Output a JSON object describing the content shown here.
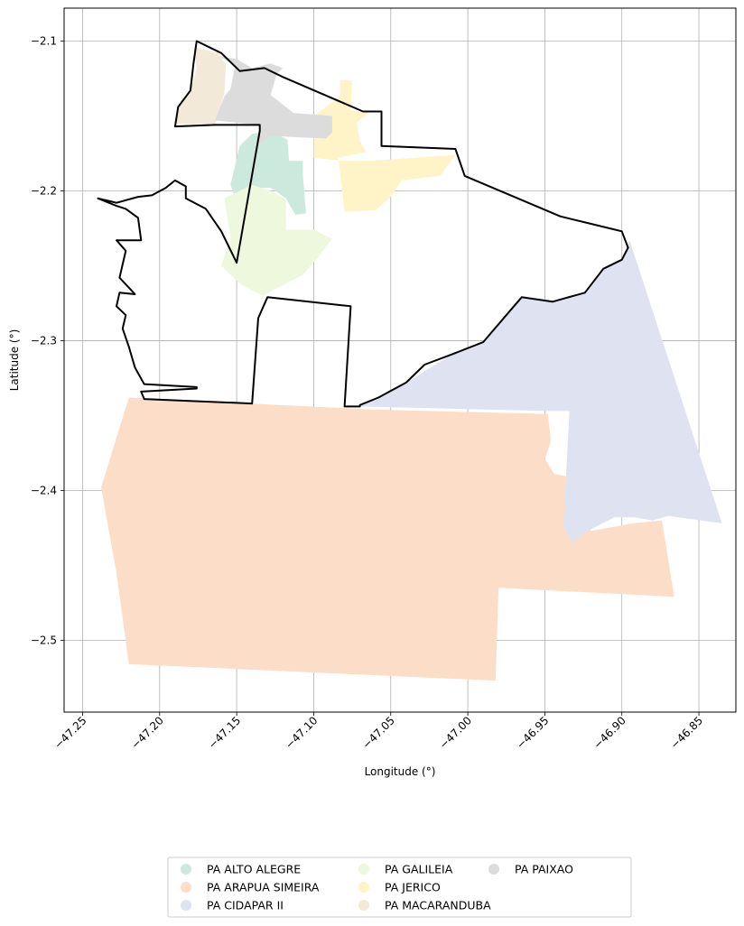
{
  "chart_data": {
    "type": "map",
    "title": "",
    "xlabel": "Longitude (°)",
    "ylabel": "Latitude (°)",
    "xlim": [
      -47.262,
      -46.826
    ],
    "ylim": [
      -2.548,
      -2.078
    ],
    "x_ticks": [
      -47.25,
      -47.2,
      -47.15,
      -47.1,
      -47.05,
      -47.0,
      -46.95,
      -46.9,
      -46.85
    ],
    "x_tick_labels": [
      "−47.25",
      "−47.20",
      "−47.15",
      "−47.10",
      "−47.05",
      "−47.00",
      "−46.95",
      "−46.90",
      "−46.85"
    ],
    "y_ticks": [
      -2.1,
      -2.2,
      -2.3,
      -2.4,
      -2.5
    ],
    "y_tick_labels": [
      "−2.1",
      "−2.2",
      "−2.3",
      "−2.4",
      "−2.5"
    ],
    "grid": true,
    "legend_position": "bottom-center",
    "legend_columns": 3,
    "boundary": {
      "color": "#000000",
      "coordinates": [
        [
          -47.176,
          -2.1
        ],
        [
          -47.16,
          -2.108
        ],
        [
          -47.148,
          -2.12
        ],
        [
          -47.132,
          -2.118
        ],
        [
          -47.12,
          -2.124
        ],
        [
          -47.068,
          -2.147
        ],
        [
          -47.056,
          -2.147
        ],
        [
          -47.056,
          -2.17
        ],
        [
          -47.008,
          -2.172
        ],
        [
          -47.002,
          -2.19
        ],
        [
          -46.94,
          -2.217
        ],
        [
          -46.92,
          -2.222
        ],
        [
          -46.9,
          -2.227
        ],
        [
          -46.896,
          -2.238
        ],
        [
          -46.9,
          -2.246
        ],
        [
          -46.912,
          -2.252
        ],
        [
          -46.924,
          -2.268
        ],
        [
          -46.945,
          -2.274
        ],
        [
          -46.965,
          -2.271
        ],
        [
          -46.975,
          -2.283
        ],
        [
          -46.99,
          -2.301
        ],
        [
          -47.01,
          -2.309
        ],
        [
          -47.028,
          -2.316
        ],
        [
          -47.04,
          -2.328
        ],
        [
          -47.058,
          -2.338
        ],
        [
          -47.07,
          -2.343
        ],
        [
          -47.07,
          -2.344
        ],
        [
          -47.08,
          -2.344
        ],
        [
          -47.076,
          -2.277
        ],
        [
          -47.13,
          -2.271
        ],
        [
          -47.136,
          -2.285
        ],
        [
          -47.14,
          -2.342
        ],
        [
          -47.21,
          -2.339
        ],
        [
          -47.212,
          -2.334
        ],
        [
          -47.176,
          -2.332
        ],
        [
          -47.176,
          -2.331
        ],
        [
          -47.21,
          -2.329
        ],
        [
          -47.216,
          -2.318
        ],
        [
          -47.22,
          -2.304
        ],
        [
          -47.224,
          -2.292
        ],
        [
          -47.222,
          -2.283
        ],
        [
          -47.228,
          -2.277
        ],
        [
          -47.226,
          -2.268
        ],
        [
          -47.216,
          -2.269
        ],
        [
          -47.226,
          -2.258
        ],
        [
          -47.222,
          -2.24
        ],
        [
          -47.228,
          -2.233
        ],
        [
          -47.212,
          -2.233
        ],
        [
          -47.214,
          -2.218
        ],
        [
          -47.222,
          -2.212
        ],
        [
          -47.228,
          -2.21
        ],
        [
          -47.24,
          -2.205
        ],
        [
          -47.228,
          -2.208
        ],
        [
          -47.214,
          -2.204
        ],
        [
          -47.205,
          -2.203
        ],
        [
          -47.196,
          -2.198
        ],
        [
          -47.19,
          -2.193
        ],
        [
          -47.183,
          -2.197
        ],
        [
          -47.183,
          -2.205
        ],
        [
          -47.17,
          -2.212
        ],
        [
          -47.16,
          -2.227
        ],
        [
          -47.15,
          -2.248
        ],
        [
          -47.135,
          -2.16
        ],
        [
          -47.135,
          -2.156
        ],
        [
          -47.164,
          -2.156
        ],
        [
          -47.19,
          -2.157
        ],
        [
          -47.188,
          -2.144
        ],
        [
          -47.18,
          -2.133
        ],
        [
          -47.178,
          -2.115
        ],
        [
          -47.176,
          -2.1
        ]
      ]
    },
    "series": [
      {
        "name": "PA ALTO ALEGRE",
        "color": "#cce9dd",
        "polygons": [
          [
            [
              -47.148,
              -2.17
            ],
            [
              -47.14,
              -2.162
            ],
            [
              -47.127,
              -2.16
            ],
            [
              -47.117,
              -2.166
            ],
            [
              -47.116,
              -2.18
            ],
            [
              -47.107,
              -2.18
            ],
            [
              -47.107,
              -2.19
            ],
            [
              -47.105,
              -2.215
            ],
            [
              -47.112,
              -2.216
            ],
            [
              -47.118,
              -2.205
            ],
            [
              -47.128,
              -2.198
            ],
            [
              -47.14,
              -2.198
            ],
            [
              -47.15,
              -2.208
            ],
            [
              -47.154,
              -2.196
            ]
          ]
        ]
      },
      {
        "name": "PA ARAPUA SIMEIRA",
        "color": "#fcdec8",
        "polygons": [
          [
            [
              -47.22,
              -2.338
            ],
            [
              -47.062,
              -2.346
            ],
            [
              -46.948,
              -2.349
            ],
            [
              -46.946,
              -2.367
            ],
            [
              -46.95,
              -2.379
            ],
            [
              -46.944,
              -2.389
            ],
            [
              -46.928,
              -2.392
            ],
            [
              -46.92,
              -2.427
            ],
            [
              -46.893,
              -2.422
            ],
            [
              -46.874,
              -2.42
            ],
            [
              -46.866,
              -2.471
            ],
            [
              -46.98,
              -2.465
            ],
            [
              -46.982,
              -2.527
            ],
            [
              -47.22,
              -2.516
            ],
            [
              -47.228,
              -2.455
            ],
            [
              -47.238,
              -2.398
            ]
          ]
        ]
      },
      {
        "name": "PA CIDAPAR II",
        "color": "#dfe2f0",
        "polygons": [
          [
            [
              -46.895,
              -2.233
            ],
            [
              -46.835,
              -2.422
            ],
            [
              -46.87,
              -2.417
            ],
            [
              -46.88,
              -2.42
            ],
            [
              -46.892,
              -2.418
            ],
            [
              -46.905,
              -2.418
            ],
            [
              -46.924,
              -2.428
            ],
            [
              -46.932,
              -2.435
            ],
            [
              -46.938,
              -2.425
            ],
            [
              -46.934,
              -2.347
            ],
            [
              -46.948,
              -2.347
            ],
            [
              -47.07,
              -2.344
            ],
            [
              -47.04,
              -2.328
            ],
            [
              -47.01,
              -2.309
            ],
            [
              -46.99,
              -2.301
            ],
            [
              -46.975,
              -2.283
            ],
            [
              -46.965,
              -2.271
            ],
            [
              -46.945,
              -2.274
            ],
            [
              -46.924,
              -2.268
            ],
            [
              -46.912,
              -2.252
            ],
            [
              -46.9,
              -2.246
            ]
          ]
        ]
      },
      {
        "name": "PA GALILEIA",
        "color": "#eef8dc",
        "polygons": [
          [
            [
              -47.158,
              -2.205
            ],
            [
              -47.14,
              -2.196
            ],
            [
              -47.128,
              -2.2
            ],
            [
              -47.118,
              -2.206
            ],
            [
              -47.118,
              -2.226
            ],
            [
              -47.1,
              -2.226
            ],
            [
              -47.088,
              -2.232
            ],
            [
              -47.097,
              -2.244
            ],
            [
              -47.107,
              -2.256
            ],
            [
              -47.12,
              -2.263
            ],
            [
              -47.133,
              -2.27
            ],
            [
              -47.148,
              -2.262
            ],
            [
              -47.16,
              -2.25
            ],
            [
              -47.154,
              -2.231
            ]
          ]
        ]
      },
      {
        "name": "PA JERICO",
        "color": "#fff4c8",
        "polygons": [
          [
            [
              -47.075,
              -2.126
            ],
            [
              -47.083,
              -2.126
            ],
            [
              -47.083,
              -2.137
            ],
            [
              -47.1,
              -2.15
            ],
            [
              -47.1,
              -2.178
            ],
            [
              -47.08,
              -2.18
            ],
            [
              -47.064,
              -2.18
            ],
            [
              -47.008,
              -2.176
            ],
            [
              -47.018,
              -2.19
            ],
            [
              -47.043,
              -2.193
            ],
            [
              -47.05,
              -2.204
            ],
            [
              -47.06,
              -2.213
            ],
            [
              -47.08,
              -2.214
            ],
            [
              -47.082,
              -2.196
            ],
            [
              -47.084,
              -2.178
            ],
            [
              -47.066,
              -2.174
            ],
            [
              -47.07,
              -2.167
            ],
            [
              -47.072,
              -2.154
            ],
            [
              -47.064,
              -2.148
            ],
            [
              -47.076,
              -2.146
            ]
          ]
        ]
      },
      {
        "name": "PA MACARANDUBA",
        "color": "#f3e9d8",
        "polygons": [
          [
            [
              -47.178,
              -2.104
            ],
            [
              -47.162,
              -2.108
            ],
            [
              -47.157,
              -2.116
            ],
            [
              -47.158,
              -2.135
            ],
            [
              -47.164,
              -2.156
            ],
            [
              -47.19,
              -2.155
            ],
            [
              -47.188,
              -2.145
            ],
            [
              -47.18,
              -2.134
            ],
            [
              -47.176,
              -2.118
            ]
          ]
        ]
      },
      {
        "name": "PA PAIXAO",
        "color": "#dcdcdc",
        "polygons": [
          [
            [
              -47.162,
              -2.11
            ],
            [
              -47.151,
              -2.116
            ],
            [
              -47.154,
              -2.132
            ],
            [
              -47.158,
              -2.137
            ],
            [
              -47.164,
              -2.153
            ],
            [
              -47.135,
              -2.156
            ],
            [
              -47.137,
              -2.17
            ],
            [
              -47.128,
              -2.163
            ],
            [
              -47.115,
              -2.164
            ],
            [
              -47.092,
              -2.165
            ],
            [
              -47.088,
              -2.161
            ],
            [
              -47.088,
              -2.15
            ],
            [
              -47.113,
              -2.148
            ],
            [
              -47.128,
              -2.136
            ],
            [
              -47.124,
              -2.122
            ],
            [
              -47.12,
              -2.118
            ],
            [
              -47.128,
              -2.115
            ],
            [
              -47.14,
              -2.118
            ],
            [
              -47.15,
              -2.112
            ]
          ]
        ]
      }
    ]
  }
}
